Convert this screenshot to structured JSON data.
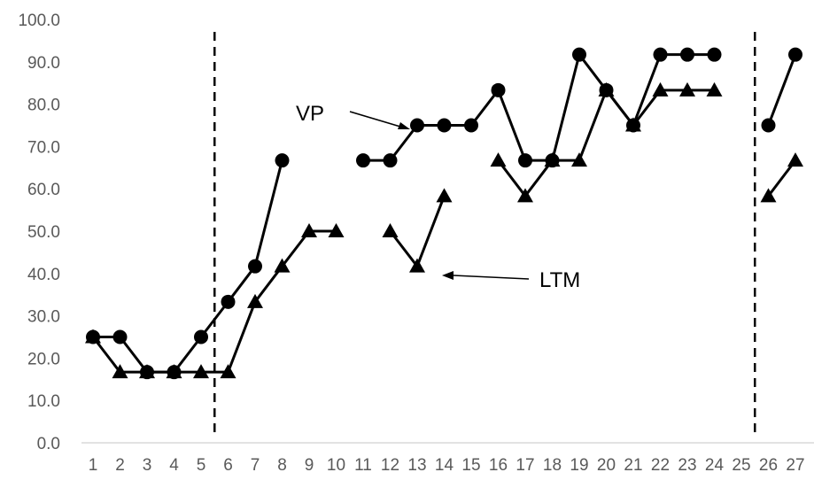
{
  "chart_data": {
    "type": "line",
    "title": "",
    "xlabel": "",
    "ylabel": "",
    "x": [
      1,
      2,
      3,
      4,
      5,
      6,
      7,
      8,
      9,
      10,
      11,
      12,
      13,
      14,
      15,
      16,
      17,
      18,
      19,
      20,
      21,
      22,
      23,
      24,
      25,
      26,
      27
    ],
    "x_tick_labels": [
      "1",
      "2",
      "3",
      "4",
      "5",
      "6",
      "7",
      "8",
      "9",
      "10",
      "11",
      "12",
      "13",
      "14",
      "15",
      "16",
      "17",
      "18",
      "19",
      "20",
      "21",
      "22",
      "23",
      "24",
      "25",
      "26",
      "27"
    ],
    "ylim": [
      0,
      100
    ],
    "y_tick_labels": [
      "0.0",
      "10.0",
      "20.0",
      "30.0",
      "40.0",
      "50.0",
      "60.0",
      "70.0",
      "80.0",
      "90.0",
      "100.0"
    ],
    "grid": false,
    "legend": "none",
    "phase_change_lines": [
      5.5,
      25.5
    ],
    "series": [
      {
        "name": "VP",
        "marker": "circle",
        "color": "#000000",
        "values": [
          25.0,
          25.0,
          16.7,
          16.7,
          25.0,
          33.3,
          41.7,
          66.7,
          null,
          null,
          66.7,
          66.7,
          75.0,
          75.0,
          75.0,
          83.3,
          66.7,
          66.7,
          91.7,
          83.3,
          75.0,
          91.7,
          91.7,
          91.7,
          null,
          75.0,
          91.7
        ]
      },
      {
        "name": "LTM",
        "marker": "triangle",
        "color": "#000000",
        "values": [
          25.0,
          16.7,
          16.7,
          16.7,
          16.7,
          16.7,
          33.3,
          41.7,
          50.0,
          50.0,
          null,
          50.0,
          41.7,
          58.3,
          null,
          66.7,
          58.3,
          66.7,
          66.7,
          83.3,
          75.0,
          83.3,
          83.3,
          83.3,
          null,
          58.3,
          66.7
        ]
      }
    ],
    "annotations": [
      {
        "text": "VP",
        "series": "VP",
        "x": 13,
        "y": 75.0
      },
      {
        "text": "LTM",
        "series": "LTM",
        "x": 13,
        "y": 41.7
      }
    ]
  }
}
